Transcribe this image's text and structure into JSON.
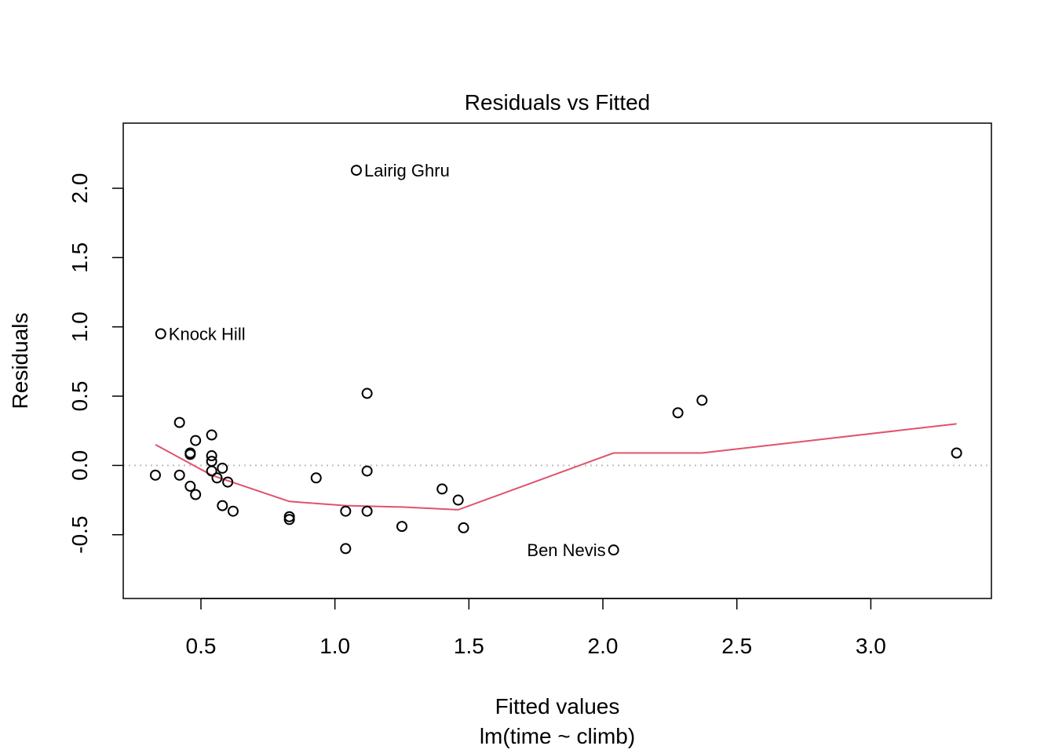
{
  "chart_data": {
    "type": "scatter",
    "title": "Residuals vs Fitted",
    "xlabel": "Fitted values",
    "subtitle": "lm(time ~ climb)",
    "ylabel": "Residuals",
    "xlim": [
      0.21,
      3.45
    ],
    "ylim": [
      -0.96,
      2.47
    ],
    "xticks": [
      {
        "value": 0.5,
        "label": "0.5"
      },
      {
        "value": 1.0,
        "label": "1.0"
      },
      {
        "value": 1.5,
        "label": "1.5"
      },
      {
        "value": 2.0,
        "label": "2.0"
      },
      {
        "value": 2.5,
        "label": "2.5"
      },
      {
        "value": 3.0,
        "label": "3.0"
      }
    ],
    "yticks": [
      {
        "value": -0.5,
        "label": "-0.5"
      },
      {
        "value": 0.0,
        "label": "0.0"
      },
      {
        "value": 0.5,
        "label": "0.5"
      },
      {
        "value": 1.0,
        "label": "1.0"
      },
      {
        "value": 1.5,
        "label": "1.5"
      },
      {
        "value": 2.0,
        "label": "2.0"
      }
    ],
    "points": [
      {
        "x": 1.08,
        "y": 2.13,
        "label": "Lairig Ghru",
        "label_side": "right"
      },
      {
        "x": 0.35,
        "y": 0.95,
        "label": "Knock Hill",
        "label_side": "right"
      },
      {
        "x": 2.04,
        "y": -0.61,
        "label": "Ben Nevis",
        "label_side": "left"
      },
      {
        "x": 0.33,
        "y": -0.07
      },
      {
        "x": 0.42,
        "y": 0.31
      },
      {
        "x": 0.42,
        "y": -0.07
      },
      {
        "x": 0.46,
        "y": 0.08
      },
      {
        "x": 0.46,
        "y": 0.09
      },
      {
        "x": 0.46,
        "y": -0.15
      },
      {
        "x": 0.48,
        "y": 0.18
      },
      {
        "x": 0.48,
        "y": -0.21
      },
      {
        "x": 0.54,
        "y": 0.22
      },
      {
        "x": 0.54,
        "y": 0.07
      },
      {
        "x": 0.54,
        "y": 0.03
      },
      {
        "x": 0.54,
        "y": -0.04
      },
      {
        "x": 0.56,
        "y": -0.09
      },
      {
        "x": 0.58,
        "y": -0.02
      },
      {
        "x": 0.58,
        "y": -0.29
      },
      {
        "x": 0.6,
        "y": -0.12
      },
      {
        "x": 0.62,
        "y": -0.33
      },
      {
        "x": 0.83,
        "y": -0.37
      },
      {
        "x": 0.83,
        "y": -0.39
      },
      {
        "x": 0.93,
        "y": -0.09
      },
      {
        "x": 1.04,
        "y": -0.33
      },
      {
        "x": 1.04,
        "y": -0.6
      },
      {
        "x": 1.12,
        "y": 0.52
      },
      {
        "x": 1.12,
        "y": -0.04
      },
      {
        "x": 1.12,
        "y": -0.33
      },
      {
        "x": 1.25,
        "y": -0.44
      },
      {
        "x": 1.4,
        "y": -0.17
      },
      {
        "x": 1.46,
        "y": -0.25
      },
      {
        "x": 1.48,
        "y": -0.45
      },
      {
        "x": 2.28,
        "y": 0.38
      },
      {
        "x": 2.37,
        "y": 0.47
      },
      {
        "x": 3.32,
        "y": 0.09
      }
    ],
    "smooth_line": {
      "color": "#DF536B",
      "x": [
        0.33,
        0.54,
        0.83,
        1.04,
        1.25,
        1.46,
        2.04,
        2.37,
        3.32
      ],
      "y": [
        0.15,
        -0.07,
        -0.26,
        -0.29,
        -0.3,
        -0.32,
        0.09,
        0.09,
        0.3
      ]
    },
    "reference_line": {
      "y": 0.0,
      "style": "dotted",
      "color": "#BEBEBE"
    }
  }
}
